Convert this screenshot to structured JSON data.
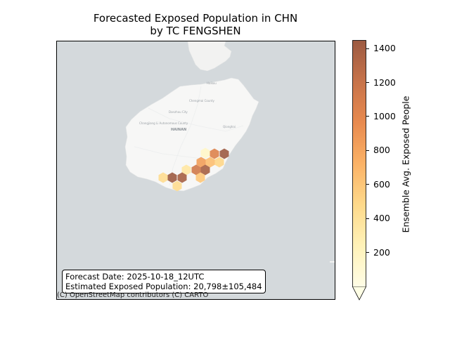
{
  "title_line1": "Forecasted Exposed Population in CHN",
  "title_line2": "by TC FENGSHEN",
  "info": {
    "forecast_date": "Forecast Date: 2025-10-18_12UTC",
    "exposed_population": "Estimated Exposed Population: 20,798±105,484"
  },
  "attribution": "(C) OpenStreetMap contributors (C) CARTO",
  "map_labels": {
    "haikou": "Haikou",
    "chengmai": "Chengmai County",
    "danzhou": "Danzhou City",
    "changjiang": "Changjiang Li Autonomous County",
    "hainan": "HAINAN",
    "qionghai": "Qionghai"
  },
  "colorbar": {
    "label": "Ensemble Avg. Exposed People",
    "min": 0,
    "max": 1450,
    "ticks": [
      "200",
      "400",
      "600",
      "800",
      "1000",
      "1200",
      "1400"
    ],
    "colors": [
      "#fffde6",
      "#fff2b8",
      "#fed98a",
      "#fbb266",
      "#e88a4f",
      "#c7734a",
      "#9c5a42"
    ]
  },
  "chart_data": {
    "type": "heatmap",
    "title": "Forecasted Exposed Population in CHN by TC FENGSHEN",
    "colorbar_label": "Ensemble Avg. Exposed People",
    "value_range": [
      0,
      1450
    ],
    "cells": [
      {
        "id": "h1",
        "value": 150
      },
      {
        "id": "h2",
        "value": 1050
      },
      {
        "id": "h3",
        "value": 1450
      },
      {
        "id": "h4",
        "value": 850
      },
      {
        "id": "h5",
        "value": 650
      },
      {
        "id": "h6",
        "value": 500
      },
      {
        "id": "h7",
        "value": 1150
      },
      {
        "id": "h8",
        "value": 1400
      },
      {
        "id": "h9",
        "value": 350
      },
      {
        "id": "h10",
        "value": 450
      },
      {
        "id": "h11",
        "value": 1450
      },
      {
        "id": "h12",
        "value": 1400
      },
      {
        "id": "h13",
        "value": 600
      },
      {
        "id": "h14",
        "value": 450
      }
    ]
  }
}
